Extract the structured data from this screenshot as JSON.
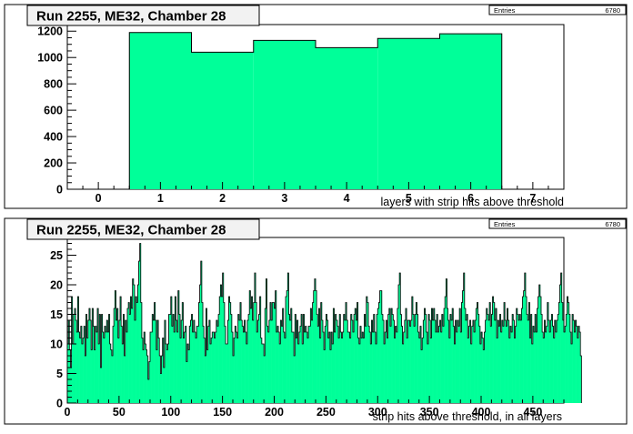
{
  "chart_data": [
    {
      "type": "bar",
      "title": "Run 2255, ME32, Chamber 28",
      "stats": {
        "label": "Entries",
        "value": "6780"
      },
      "xlabel": "layers with strip hits above threshold",
      "xlim": [
        -0.5,
        7.5
      ],
      "ylim": [
        0,
        1250
      ],
      "xticks": [
        "0",
        "1",
        "2",
        "3",
        "4",
        "5",
        "6",
        "7"
      ],
      "yticks": [
        "0",
        "200",
        "400",
        "600",
        "800",
        "1000",
        "1200"
      ],
      "fill": "#00ff99",
      "categories": [
        1,
        2,
        3,
        4,
        5,
        6
      ],
      "values": [
        1190,
        1040,
        1130,
        1075,
        1145,
        1180
      ]
    },
    {
      "type": "bar",
      "title": "Run 2255, ME32, Chamber 28",
      "stats": {
        "label": "Entries",
        "value": "6780"
      },
      "xlabel": "strip hits above threshold, in all layers",
      "xlim": [
        0,
        480
      ],
      "ylim": [
        0,
        28
      ],
      "xticks": [
        "0",
        "50",
        "100",
        "150",
        "200",
        "250",
        "300",
        "350",
        "400",
        "450"
      ],
      "yticks": [
        "0",
        "5",
        "10",
        "15",
        "20",
        "25"
      ],
      "fill": "#00ff99",
      "bin_width": 1,
      "values": [
        10,
        14,
        9,
        6,
        18,
        10,
        15,
        16,
        14,
        12,
        18,
        12,
        11,
        13,
        10,
        11,
        13,
        8,
        15,
        11,
        14,
        16,
        14,
        9,
        16,
        13,
        9,
        13,
        12,
        16,
        10,
        15,
        6,
        15,
        12,
        11,
        13,
        12,
        14,
        12,
        15,
        10,
        9,
        8,
        13,
        16,
        19,
        14,
        16,
        11,
        14,
        18,
        13,
        10,
        15,
        8,
        14,
        12,
        16,
        17,
        15,
        18,
        16,
        21,
        20,
        14,
        18,
        17,
        20,
        24,
        27,
        17,
        11,
        9,
        12,
        10,
        9,
        8,
        4,
        7,
        12,
        12,
        15,
        14,
        17,
        14,
        9,
        14,
        11,
        8,
        5,
        8,
        11,
        6,
        14,
        10,
        9,
        10,
        15,
        15,
        18,
        13,
        15,
        12,
        18,
        14,
        12,
        19,
        15,
        11,
        14,
        17,
        11,
        12,
        13,
        7,
        10,
        9,
        13,
        14,
        15,
        12,
        14,
        12,
        11,
        13,
        13,
        17,
        20,
        24,
        17,
        13,
        11,
        8,
        16,
        9,
        13,
        14,
        10,
        11,
        12,
        12,
        11,
        12,
        14,
        13,
        15,
        18,
        20,
        18,
        22,
        17,
        13,
        10,
        10,
        14,
        18,
        17,
        15,
        12,
        8,
        11,
        13,
        12,
        11,
        15,
        14,
        17,
        14,
        13,
        12,
        14,
        12,
        10,
        14,
        15,
        19,
        16,
        18,
        14,
        17,
        22,
        17,
        12,
        14,
        15,
        18,
        11,
        10,
        10,
        8,
        16,
        21,
        13,
        12,
        14,
        17,
        14,
        17,
        17,
        16,
        19,
        12,
        13,
        12,
        10,
        14,
        13,
        16,
        12,
        11,
        18,
        19,
        22,
        15,
        14,
        16,
        12,
        12,
        8,
        15,
        11,
        14,
        10,
        12,
        13,
        15,
        10,
        15,
        12,
        13,
        12,
        11,
        13,
        13,
        16,
        14,
        17,
        19,
        21,
        19,
        15,
        13,
        16,
        11,
        17,
        14,
        12,
        9,
        13,
        15,
        14,
        11,
        12,
        9,
        12,
        10,
        16,
        12,
        15,
        14,
        13,
        11,
        15,
        12,
        11,
        12,
        15,
        14,
        17,
        14,
        12,
        12,
        11,
        15,
        14,
        12,
        15,
        16,
        14,
        17,
        11,
        10,
        13,
        11,
        12,
        11,
        15,
        13,
        18,
        17,
        13,
        12,
        10,
        14,
        12,
        15,
        12,
        10,
        15,
        16,
        17,
        19,
        19,
        15,
        14,
        10,
        12,
        14,
        11,
        15,
        16,
        13,
        16,
        15,
        14,
        11,
        13,
        12,
        16,
        20,
        22,
        15,
        13,
        10,
        12,
        14,
        16,
        11,
        14,
        14,
        13,
        14,
        18,
        15,
        13,
        15,
        17,
        15,
        12,
        11,
        13,
        9,
        11,
        14,
        16,
        15,
        12,
        10,
        15,
        14,
        11,
        16,
        14,
        16,
        14,
        12,
        15,
        12,
        13,
        14,
        12,
        15,
        13,
        16,
        18,
        21,
        16,
        14,
        11,
        15,
        14,
        16,
        13,
        10,
        14,
        12,
        14,
        13,
        16,
        12,
        17,
        19,
        22,
        16,
        14,
        15,
        11,
        13,
        14,
        10,
        13,
        14,
        12,
        14,
        16,
        17,
        15,
        13,
        10,
        12,
        11,
        9,
        12,
        14,
        16,
        15,
        14,
        17,
        13,
        15,
        18,
        17,
        14,
        16,
        11,
        14,
        13,
        15,
        12,
        14,
        13,
        17,
        14,
        13,
        16,
        14,
        11,
        13,
        12,
        15,
        14,
        11,
        13,
        16,
        15,
        14,
        15,
        14,
        16,
        18,
        19,
        22,
        18,
        15,
        14,
        17,
        11,
        15,
        10,
        13,
        12,
        15,
        12,
        16,
        18,
        20,
        18,
        15,
        12,
        11,
        14,
        12,
        13,
        17,
        14,
        12,
        14,
        15,
        13,
        11,
        14,
        12,
        14,
        15,
        17,
        20,
        22,
        17,
        14,
        12,
        13,
        15,
        18,
        17,
        15,
        12,
        10,
        15,
        14,
        12,
        14,
        13,
        11,
        13,
        12,
        8
      ]
    }
  ]
}
